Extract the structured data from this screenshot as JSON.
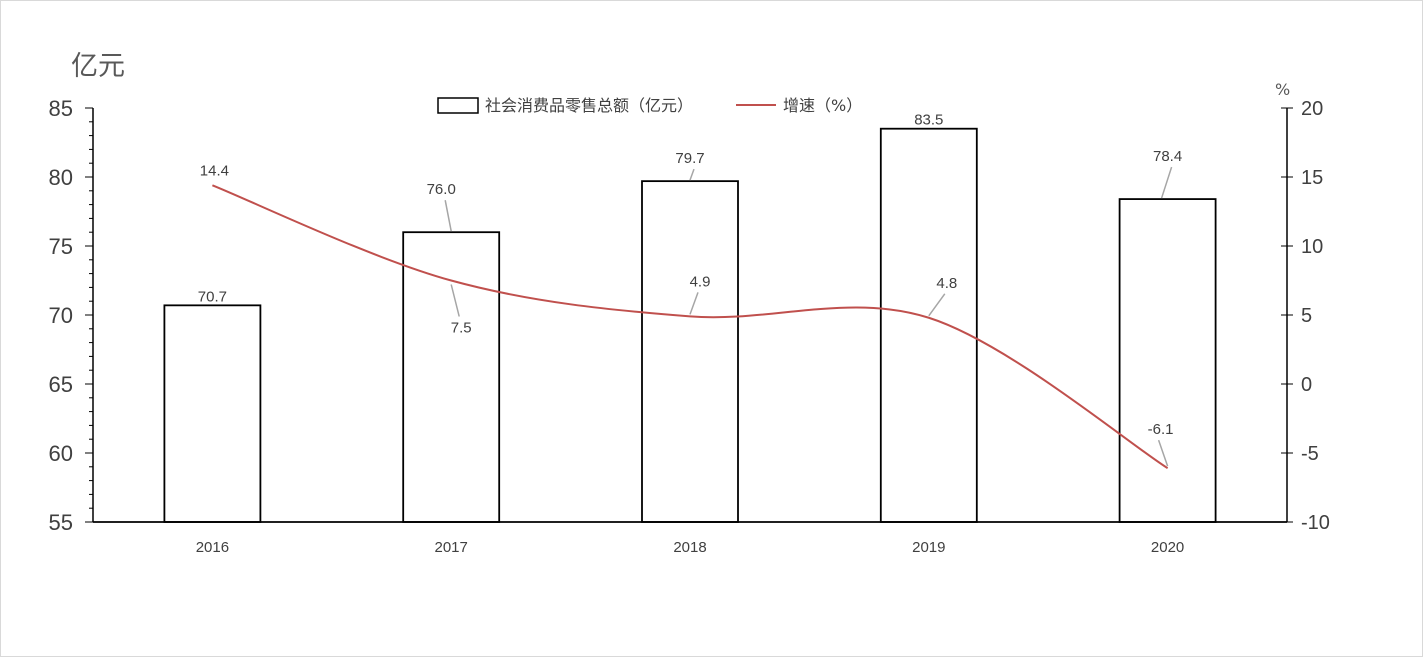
{
  "chart_data": {
    "type": "bar+line",
    "categories": [
      "2016",
      "2017",
      "2018",
      "2019",
      "2020"
    ],
    "series": [
      {
        "name": "社会消费品零售总额（亿元）",
        "type": "bar",
        "axis": "left",
        "values": [
          70.7,
          76.0,
          79.7,
          83.5,
          78.4
        ],
        "labels": [
          "70.7",
          "76.0",
          "79.7",
          "83.5",
          "78.4"
        ],
        "fill": "#ffffff",
        "stroke": "#000000"
      },
      {
        "name": "增速（%）",
        "type": "line",
        "axis": "right",
        "smooth": true,
        "values": [
          14.4,
          7.5,
          4.9,
          4.8,
          -6.1
        ],
        "labels": [
          "14.4",
          "7.5",
          "4.9",
          "4.8",
          "-6.1"
        ],
        "color": "#c0504d"
      }
    ],
    "left_axis": {
      "unit": "亿元",
      "min": 55,
      "max": 85,
      "step": 5,
      "ticks": [
        "55",
        "60",
        "65",
        "70",
        "75",
        "80",
        "85"
      ]
    },
    "right_axis": {
      "unit": "%",
      "min": -10,
      "max": 20,
      "step": 5,
      "ticks": [
        "-10",
        "-5",
        "0",
        "5",
        "10",
        "15",
        "20"
      ]
    },
    "legend_position": "top-center",
    "grid": false
  }
}
